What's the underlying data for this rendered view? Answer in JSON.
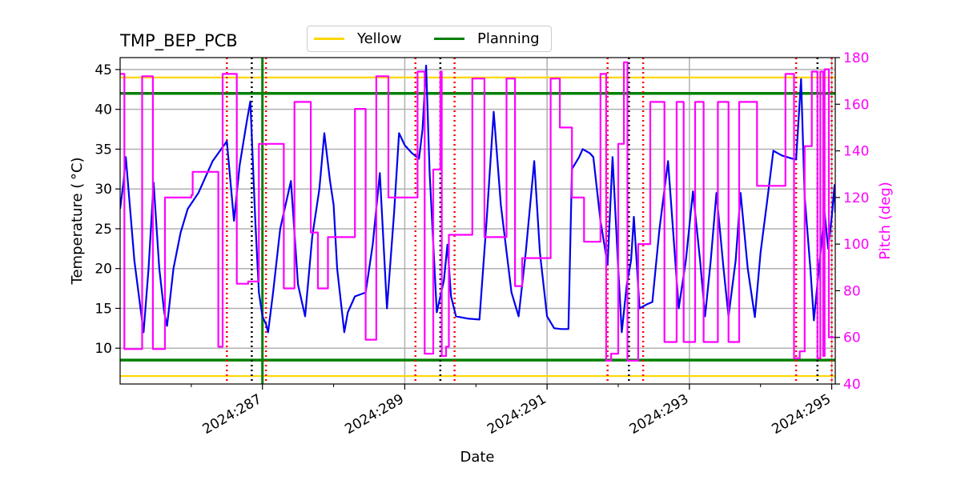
{
  "chart_data": {
    "type": "line",
    "title": "TMP_BEP_PCB",
    "xlabel": "Date",
    "ylabel": "Temperature ($^\\circ$C)",
    "ylabel_display": "Temperature ( °C)",
    "y2label": "Pitch (deg)",
    "xlim": [
      285.0,
      295.05
    ],
    "ylim": [
      5.5,
      46.5
    ],
    "y2lim": [
      40,
      180
    ],
    "x_ticks": [
      {
        "value": 287,
        "label": "2024:287"
      },
      {
        "value": 289,
        "label": "2024:289"
      },
      {
        "value": 291,
        "label": "2024:291"
      },
      {
        "value": 293,
        "label": "2024:293"
      },
      {
        "value": 295,
        "label": "2024:295"
      }
    ],
    "x_minor_ticks": [
      286,
      288,
      290,
      292,
      294
    ],
    "y_ticks": [
      10,
      15,
      20,
      25,
      30,
      35,
      40,
      45
    ],
    "y2_ticks": [
      40,
      60,
      80,
      100,
      120,
      140,
      160,
      180
    ],
    "grid": true,
    "colors": {
      "temperature": "#0000ee",
      "pitch": "#ff00ff",
      "yellow": "#ffd700",
      "planning": "#008000",
      "red_marker": "#ff0000",
      "black_marker": "#000000"
    },
    "limits": [
      {
        "name": "Yellow",
        "values": [
          44.0,
          6.5
        ]
      },
      {
        "name": "Planning",
        "values": [
          42.0,
          8.5
        ]
      }
    ],
    "legend": {
      "placement": "top-center",
      "entries": [
        {
          "label": "Yellow",
          "color": "#ffd700"
        },
        {
          "label": "Planning",
          "color": "#008000"
        }
      ]
    },
    "vertical_lines": {
      "red_dotted": [
        286.5,
        287.05,
        289.15,
        289.7,
        291.85,
        292.35,
        294.5,
        295.0
      ],
      "black_dotted": [
        286.85,
        289.5,
        292.15,
        294.8
      ],
      "green_solid": [
        287.0
      ]
    },
    "series": [
      {
        "name": "Temperature",
        "axis": "left",
        "color": "#0000ee",
        "points": [
          [
            285,
            27.5
          ],
          [
            285.05,
            31
          ],
          [
            285.08,
            34
          ],
          [
            285.2,
            21
          ],
          [
            285.3,
            14
          ],
          [
            285.33,
            12
          ],
          [
            285.4,
            20
          ],
          [
            285.47,
            30.8
          ],
          [
            285.55,
            20
          ],
          [
            285.62,
            14.5
          ],
          [
            285.66,
            12.8
          ],
          [
            285.75,
            20
          ],
          [
            285.85,
            24.5
          ],
          [
            285.95,
            27.5
          ],
          [
            286.1,
            29.5
          ],
          [
            286.3,
            33.5
          ],
          [
            286.5,
            36
          ],
          [
            286.55,
            31
          ],
          [
            286.6,
            26
          ],
          [
            286.68,
            33
          ],
          [
            286.78,
            38.5
          ],
          [
            286.83,
            41
          ],
          [
            286.9,
            26
          ],
          [
            286.95,
            17
          ],
          [
            287.0,
            14
          ],
          [
            287.05,
            13
          ],
          [
            287.08,
            12
          ],
          [
            287.15,
            17
          ],
          [
            287.25,
            25
          ],
          [
            287.4,
            31
          ],
          [
            287.5,
            18
          ],
          [
            287.6,
            14
          ],
          [
            287.7,
            24
          ],
          [
            287.8,
            30
          ],
          [
            287.87,
            37
          ],
          [
            287.95,
            31
          ],
          [
            288.0,
            28
          ],
          [
            288.05,
            20
          ],
          [
            288.15,
            12
          ],
          [
            288.2,
            14.5
          ],
          [
            288.3,
            16.5
          ],
          [
            288.45,
            17
          ],
          [
            288.55,
            23
          ],
          [
            288.65,
            32
          ],
          [
            288.75,
            15
          ],
          [
            288.85,
            27
          ],
          [
            288.92,
            37
          ],
          [
            289.0,
            35.5
          ],
          [
            289.1,
            34.5
          ],
          [
            289.2,
            33.8
          ],
          [
            289.25,
            37.5
          ],
          [
            289.3,
            45.5
          ],
          [
            289.35,
            32
          ],
          [
            289.45,
            14.5
          ],
          [
            289.55,
            18.5
          ],
          [
            289.6,
            23
          ],
          [
            289.65,
            16.5
          ],
          [
            289.72,
            14
          ],
          [
            289.9,
            13.7
          ],
          [
            290.05,
            13.6
          ],
          [
            290.15,
            26
          ],
          [
            290.25,
            39.7
          ],
          [
            290.35,
            28
          ],
          [
            290.5,
            17
          ],
          [
            290.6,
            14
          ],
          [
            290.7,
            22
          ],
          [
            290.82,
            33.5
          ],
          [
            290.9,
            22
          ],
          [
            291.0,
            14
          ],
          [
            291.1,
            12.5
          ],
          [
            291.2,
            12.4
          ],
          [
            291.3,
            12.4
          ],
          [
            291.35,
            32.5
          ],
          [
            291.45,
            34
          ],
          [
            291.5,
            35
          ],
          [
            291.6,
            34.5
          ],
          [
            291.65,
            34
          ],
          [
            291.75,
            26
          ],
          [
            291.85,
            20.5
          ],
          [
            291.92,
            34
          ],
          [
            292.0,
            20
          ],
          [
            292.05,
            12
          ],
          [
            292.12,
            18
          ],
          [
            292.18,
            21
          ],
          [
            292.22,
            26.5
          ],
          [
            292.3,
            15
          ],
          [
            292.4,
            15.5
          ],
          [
            292.48,
            15.8
          ],
          [
            292.58,
            25
          ],
          [
            292.7,
            33.5
          ],
          [
            292.85,
            15
          ],
          [
            292.95,
            21
          ],
          [
            293.05,
            29.7
          ],
          [
            293.15,
            21
          ],
          [
            293.22,
            14
          ],
          [
            293.3,
            21
          ],
          [
            293.38,
            29.5
          ],
          [
            293.48,
            20
          ],
          [
            293.55,
            14
          ],
          [
            293.65,
            21
          ],
          [
            293.72,
            29.5
          ],
          [
            293.82,
            20
          ],
          [
            293.92,
            13.9
          ],
          [
            294.0,
            22
          ],
          [
            294.1,
            29
          ],
          [
            294.18,
            34.8
          ],
          [
            294.3,
            34.2
          ],
          [
            294.45,
            33.8
          ],
          [
            294.5,
            33.7
          ],
          [
            294.57,
            43.8
          ],
          [
            294.62,
            29
          ],
          [
            294.7,
            20
          ],
          [
            294.75,
            13.5
          ],
          [
            294.82,
            20
          ],
          [
            294.9,
            27
          ],
          [
            294.95,
            22.5
          ],
          [
            295.0,
            26.5
          ],
          [
            295.04,
            30.5
          ],
          [
            295.05,
            27
          ]
        ]
      },
      {
        "name": "Pitch",
        "axis": "right",
        "color": "#ff00ff",
        "points": [
          [
            285,
            173
          ],
          [
            285.06,
            173
          ],
          [
            285.06,
            55
          ],
          [
            285.31,
            55
          ],
          [
            285.31,
            172
          ],
          [
            285.46,
            172
          ],
          [
            285.46,
            55
          ],
          [
            285.63,
            55
          ],
          [
            285.63,
            120
          ],
          [
            286.0,
            120
          ],
          [
            286.0,
            121
          ],
          [
            286.02,
            121
          ],
          [
            286.02,
            131
          ],
          [
            286.38,
            131
          ],
          [
            286.38,
            56
          ],
          [
            286.44,
            56
          ],
          [
            286.44,
            173
          ],
          [
            286.64,
            173
          ],
          [
            286.64,
            83
          ],
          [
            286.8,
            83
          ],
          [
            286.8,
            84
          ],
          [
            286.95,
            84
          ],
          [
            286.95,
            143
          ],
          [
            287.3,
            143
          ],
          [
            287.3,
            81
          ],
          [
            287.45,
            81
          ],
          [
            287.45,
            161
          ],
          [
            287.68,
            161
          ],
          [
            287.68,
            105
          ],
          [
            287.78,
            105
          ],
          [
            287.78,
            81
          ],
          [
            287.92,
            81
          ],
          [
            287.92,
            103
          ],
          [
            288.3,
            103
          ],
          [
            288.3,
            158
          ],
          [
            288.45,
            158
          ],
          [
            288.45,
            59
          ],
          [
            288.6,
            59
          ],
          [
            288.6,
            172
          ],
          [
            288.77,
            172
          ],
          [
            288.77,
            120
          ],
          [
            289.18,
            120
          ],
          [
            289.18,
            174
          ],
          [
            289.28,
            174
          ],
          [
            289.28,
            53
          ],
          [
            289.4,
            53
          ],
          [
            289.4,
            132
          ],
          [
            289.5,
            132
          ],
          [
            289.5,
            174
          ],
          [
            289.52,
            174
          ],
          [
            289.52,
            52
          ],
          [
            289.58,
            52
          ],
          [
            289.58,
            56
          ],
          [
            289.62,
            56
          ],
          [
            289.62,
            104
          ],
          [
            289.95,
            104
          ],
          [
            289.95,
            171
          ],
          [
            290.12,
            171
          ],
          [
            290.12,
            103
          ],
          [
            290.43,
            103
          ],
          [
            290.43,
            171
          ],
          [
            290.55,
            171
          ],
          [
            290.55,
            82
          ],
          [
            290.65,
            82
          ],
          [
            290.65,
            94
          ],
          [
            291.05,
            94
          ],
          [
            291.05,
            171
          ],
          [
            291.18,
            171
          ],
          [
            291.18,
            150
          ],
          [
            291.35,
            150
          ],
          [
            291.35,
            120
          ],
          [
            291.52,
            120
          ],
          [
            291.52,
            101
          ],
          [
            291.75,
            101
          ],
          [
            291.75,
            173
          ],
          [
            291.83,
            173
          ],
          [
            291.83,
            50
          ],
          [
            291.9,
            50
          ],
          [
            291.9,
            53
          ],
          [
            292.0,
            53
          ],
          [
            292.0,
            143
          ],
          [
            292.08,
            143
          ],
          [
            292.08,
            178
          ],
          [
            292.13,
            178
          ],
          [
            292.13,
            50
          ],
          [
            292.28,
            50
          ],
          [
            292.28,
            100
          ],
          [
            292.45,
            100
          ],
          [
            292.45,
            161
          ],
          [
            292.65,
            161
          ],
          [
            292.65,
            58
          ],
          [
            292.82,
            58
          ],
          [
            292.82,
            161
          ],
          [
            292.92,
            161
          ],
          [
            292.92,
            58
          ],
          [
            293.08,
            58
          ],
          [
            293.08,
            161
          ],
          [
            293.2,
            161
          ],
          [
            293.2,
            58
          ],
          [
            293.4,
            58
          ],
          [
            293.4,
            161
          ],
          [
            293.55,
            161
          ],
          [
            293.55,
            58
          ],
          [
            293.7,
            58
          ],
          [
            293.7,
            161
          ],
          [
            293.95,
            161
          ],
          [
            293.95,
            125
          ],
          [
            294.35,
            125
          ],
          [
            294.35,
            173
          ],
          [
            294.47,
            173
          ],
          [
            294.47,
            51
          ],
          [
            294.55,
            51
          ],
          [
            294.55,
            54
          ],
          [
            294.62,
            54
          ],
          [
            294.62,
            142
          ],
          [
            294.72,
            142
          ],
          [
            294.72,
            174
          ],
          [
            294.8,
            174
          ],
          [
            294.8,
            51
          ],
          [
            294.84,
            51
          ],
          [
            294.84,
            174
          ],
          [
            294.88,
            174
          ],
          [
            294.88,
            52
          ],
          [
            294.9,
            52
          ],
          [
            294.9,
            175
          ],
          [
            294.96,
            175
          ],
          [
            294.96,
            60
          ],
          [
            295.05,
            60
          ]
        ]
      }
    ]
  }
}
